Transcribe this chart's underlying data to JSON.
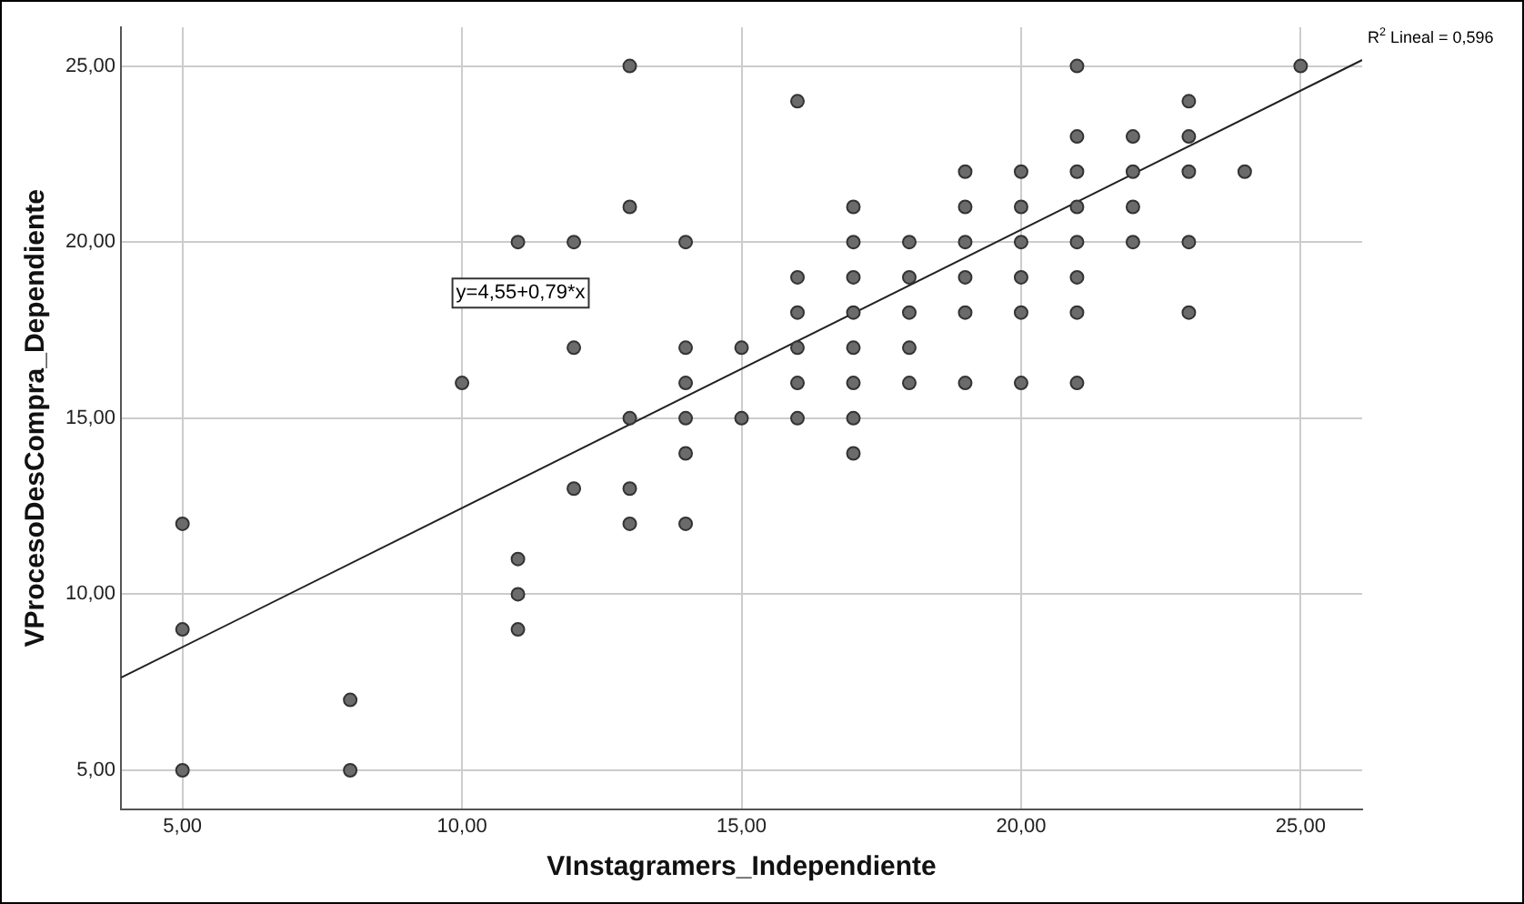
{
  "chart_data": {
    "type": "scatter",
    "xlabel": "VInstagramers_Independiente",
    "ylabel": "VProcesoDesCompra_Dependiente",
    "annotations": [
      "y=4,55+0,79*x",
      "R$^{2}$ Lineal = 0,596"
    ],
    "xlim": [
      3.9,
      26.1
    ],
    "ylim": [
      3.9,
      26.1
    ],
    "xticks": [
      {
        "value": 5,
        "label": "5,00"
      },
      {
        "value": 10,
        "label": "10,00"
      },
      {
        "value": 15,
        "label": "15,00"
      },
      {
        "value": 20,
        "label": "20,00"
      },
      {
        "value": 25,
        "label": "25,00"
      }
    ],
    "yticks": [
      {
        "value": 5,
        "label": "5,00"
      },
      {
        "value": 10,
        "label": "10,00"
      },
      {
        "value": 15,
        "label": "15,00"
      },
      {
        "value": 20,
        "label": "20,00"
      },
      {
        "value": 25,
        "label": "25,00"
      }
    ],
    "grid": true,
    "legend": false,
    "marker": "circle",
    "series": [
      {
        "color": "#6b6b6b",
        "x": [
          5,
          5,
          5,
          8,
          8,
          10,
          11,
          11,
          11,
          11,
          12,
          12,
          12,
          13,
          13,
          13,
          13,
          13,
          14,
          14,
          14,
          14,
          14,
          14,
          15,
          15,
          16,
          16,
          16,
          16,
          16,
          16,
          17,
          17,
          17,
          17,
          17,
          17,
          17,
          17,
          18,
          18,
          18,
          18,
          18,
          19,
          19,
          19,
          19,
          19,
          19,
          20,
          20,
          20,
          20,
          20,
          20,
          21,
          21,
          21,
          21,
          21,
          21,
          21,
          21,
          22,
          22,
          22,
          22,
          23,
          23,
          23,
          23,
          23,
          24,
          25
        ],
        "values": [
          12,
          9,
          5,
          7,
          5,
          16,
          20,
          11,
          10,
          9,
          20,
          17,
          13,
          25,
          21,
          15,
          13,
          12,
          20,
          17,
          16,
          15,
          14,
          12,
          17,
          15,
          24,
          19,
          18,
          17,
          16,
          15,
          21,
          20,
          19,
          18,
          17,
          16,
          15,
          14,
          20,
          19,
          18,
          17,
          16,
          22,
          21,
          20,
          19,
          18,
          16,
          22,
          21,
          20,
          19,
          18,
          16,
          25,
          23,
          22,
          21,
          20,
          19,
          18,
          16,
          23,
          22,
          21,
          20,
          24,
          23,
          22,
          20,
          18,
          22,
          25
        ]
      },
      {
        "type": "line",
        "color": "#222222",
        "x": [
          3.9,
          26.1
        ],
        "values": [
          7.63,
          25.17
        ],
        "marker": "none"
      }
    ]
  }
}
